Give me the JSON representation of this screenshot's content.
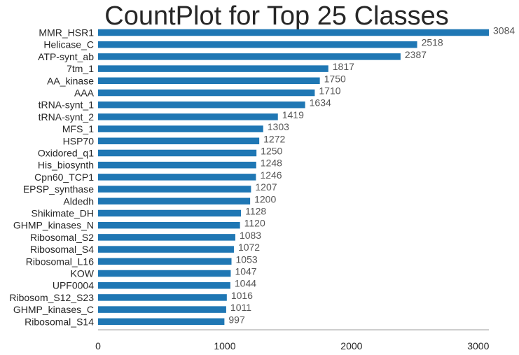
{
  "chart_data": {
    "type": "bar",
    "orientation": "horizontal",
    "title": "CountPlot for Top 25 Classes",
    "xlabel": "",
    "ylabel": "",
    "xlim": [
      0,
      3084
    ],
    "xticks": [
      0,
      1000,
      2000,
      3000
    ],
    "grid": false,
    "bar_color": "#1f77b4",
    "categories": [
      "MMR_HSR1",
      "Helicase_C",
      "ATP-synt_ab",
      "7tm_1",
      "AA_kinase",
      "AAA",
      "tRNA-synt_1",
      "tRNA-synt_2",
      "MFS_1",
      "HSP70",
      "Oxidored_q1",
      "His_biosynth",
      "Cpn60_TCP1",
      "EPSP_synthase",
      "Aldedh",
      "Shikimate_DH",
      "GHMP_kinases_N",
      "Ribosomal_S2",
      "Ribosomal_S4",
      "Ribosomal_L16",
      "KOW",
      "UPF0004",
      "Ribosom_S12_S23",
      "GHMP_kinases_C",
      "Ribosomal_S14"
    ],
    "values": [
      3084,
      2518,
      2387,
      1817,
      1750,
      1710,
      1634,
      1419,
      1303,
      1272,
      1250,
      1248,
      1246,
      1207,
      1200,
      1128,
      1120,
      1083,
      1072,
      1053,
      1047,
      1044,
      1016,
      1011,
      997
    ]
  }
}
